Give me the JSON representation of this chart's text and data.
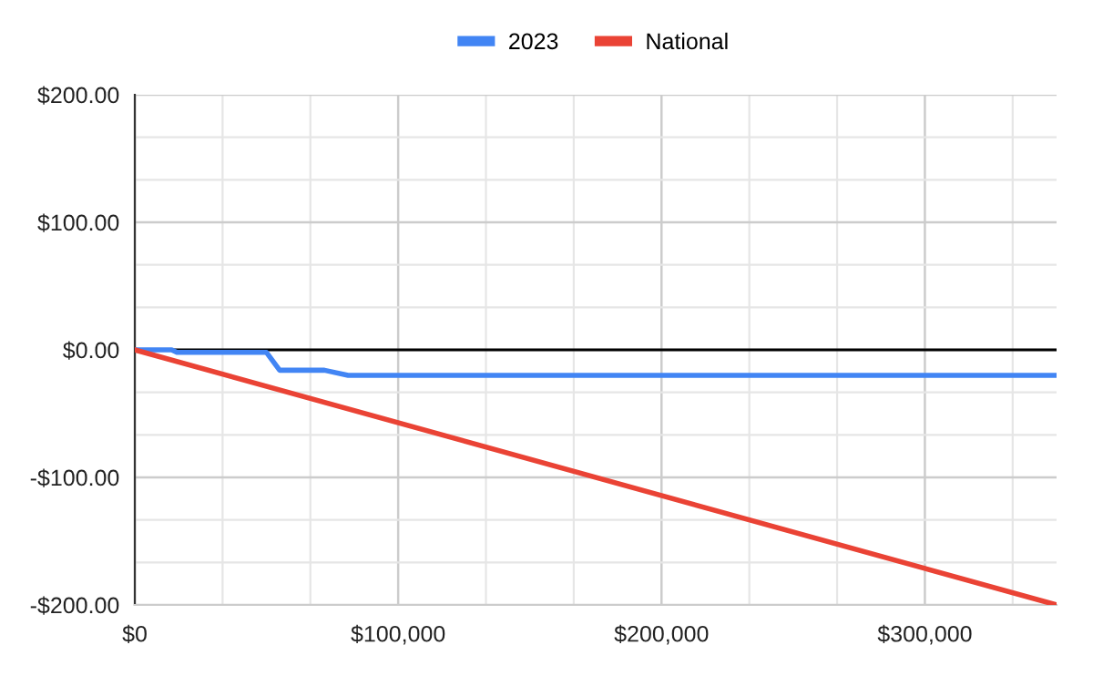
{
  "chart_data": {
    "type": "line",
    "legend": "top",
    "grid": true,
    "marker": "none",
    "line_style": "solid",
    "xlim": [
      0,
      350000
    ],
    "ylim": [
      -200,
      200
    ],
    "xticks": [
      {
        "value": 0,
        "label": "$0"
      },
      {
        "value": 33333,
        "label": null
      },
      {
        "value": 66667,
        "label": null
      },
      {
        "value": 100000,
        "label": "$100,000"
      },
      {
        "value": 133333,
        "label": null
      },
      {
        "value": 166667,
        "label": null
      },
      {
        "value": 200000,
        "label": "$200,000"
      },
      {
        "value": 233333,
        "label": null
      },
      {
        "value": 266667,
        "label": null
      },
      {
        "value": 300000,
        "label": "$300,000"
      },
      {
        "value": 333333,
        "label": null
      }
    ],
    "yticks": [
      {
        "value": -200,
        "label": "-$200.00"
      },
      {
        "value": -166.67,
        "label": null
      },
      {
        "value": -133.33,
        "label": null
      },
      {
        "value": -100,
        "label": "-$100.00"
      },
      {
        "value": -66.67,
        "label": null
      },
      {
        "value": -33.33,
        "label": null
      },
      {
        "value": 0,
        "label": "$0.00"
      },
      {
        "value": 33.33,
        "label": null
      },
      {
        "value": 66.67,
        "label": null
      },
      {
        "value": 100,
        "label": "$100.00"
      },
      {
        "value": 133.33,
        "label": null
      },
      {
        "value": 166.67,
        "label": null
      },
      {
        "value": 200,
        "label": "$200.00"
      }
    ],
    "ref_lines": [
      {
        "axis": "y",
        "value": 0,
        "color": "#000000"
      }
    ],
    "series": [
      {
        "name": "2023",
        "color": "#4285f4",
        "x": [
          0,
          14000,
          16000,
          50000,
          55000,
          72000,
          81000,
          350000
        ],
        "values": [
          0,
          0,
          -2,
          -2,
          -16,
          -16,
          -20,
          -20
        ]
      },
      {
        "name": "National",
        "color": "#ea4335",
        "x": [
          0,
          350000
        ],
        "values": [
          0,
          -200
        ]
      }
    ]
  }
}
